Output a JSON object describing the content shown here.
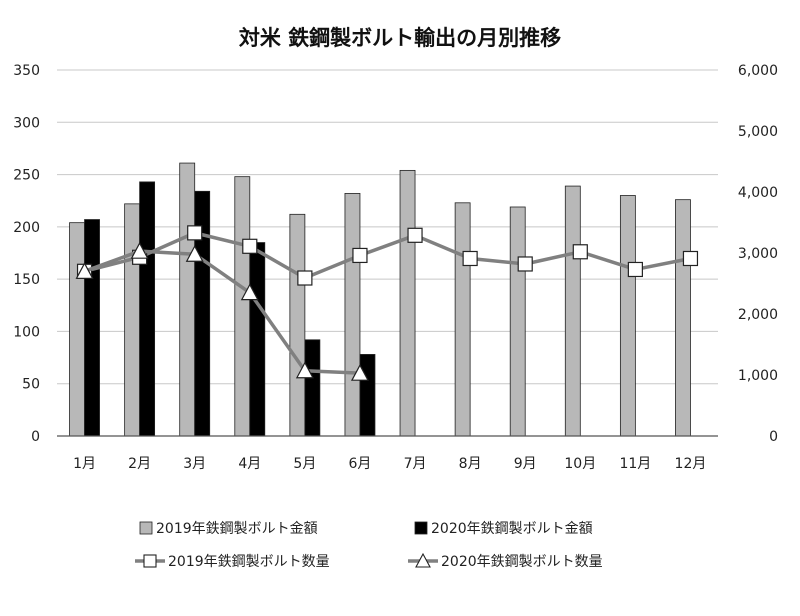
{
  "chart_data": {
    "type": "bar",
    "title": "対米 鉄鋼製ボルト輸出の月別推移",
    "categories": [
      "1月",
      "2月",
      "3月",
      "4月",
      "5月",
      "6月",
      "7月",
      "8月",
      "9月",
      "10月",
      "11月",
      "12月"
    ],
    "y_left": {
      "ylim": [
        0,
        350
      ],
      "ticks": [
        "0",
        "50",
        "100",
        "150",
        "200",
        "250",
        "300",
        "350"
      ]
    },
    "y_right": {
      "ylim": [
        0,
        6000
      ],
      "ticks": [
        "0",
        "1,000",
        "2,000",
        "3,000",
        "4,000",
        "5,000",
        "6,000"
      ]
    },
    "grid": true,
    "legend_position": "bottom",
    "series": [
      {
        "name": "2019年鉄鋼製ボルト金額",
        "kind": "bar",
        "axis": "left",
        "color": "#b8b8b8",
        "values": [
          204,
          222,
          261,
          248,
          212,
          232,
          254,
          223,
          219,
          239,
          230,
          226
        ]
      },
      {
        "name": "2020年鉄鋼製ボルト金額",
        "kind": "bar",
        "axis": "left",
        "color": "#000000",
        "values": [
          207,
          243,
          234,
          185,
          92,
          78,
          null,
          null,
          null,
          null,
          null,
          null
        ]
      },
      {
        "name": "2019年鉄鋼製ボルト数量",
        "kind": "line",
        "marker": "square",
        "axis": "right",
        "color": "#808080",
        "values": [
          2700,
          2930,
          3330,
          3110,
          2590,
          2960,
          3290,
          2910,
          2820,
          3020,
          2730,
          2910
        ]
      },
      {
        "name": "2020年鉄鋼製ボルト数量",
        "kind": "line",
        "marker": "triangle",
        "axis": "right",
        "color": "#808080",
        "values": [
          2700,
          3030,
          2980,
          2350,
          1070,
          1030,
          null,
          null,
          null,
          null,
          null,
          null
        ]
      }
    ]
  }
}
